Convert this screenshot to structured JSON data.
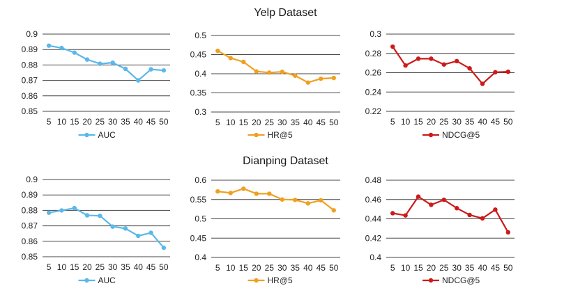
{
  "rows": [
    {
      "title": "Yelp Dataset"
    },
    {
      "title": "Dianping Dataset"
    }
  ],
  "chart_data": [
    {
      "type": "line",
      "x": [
        "5",
        "10",
        "15",
        "20",
        "25",
        "30",
        "35",
        "40",
        "45",
        "50"
      ],
      "ylim": [
        0.85,
        0.9
      ],
      "yticks": [
        "0.85",
        "0.86",
        "0.87",
        "0.88",
        "0.89",
        "0.9"
      ],
      "series": [
        {
          "name": "AUC",
          "color": "#5bb8ea",
          "values": [
            0.8925,
            0.891,
            0.888,
            0.8835,
            0.8808,
            0.8815,
            0.8775,
            0.87,
            0.8772,
            0.8765
          ]
        }
      ],
      "grid": true,
      "legend": "bottom"
    },
    {
      "type": "line",
      "x": [
        "5",
        "10",
        "15",
        "20",
        "25",
        "30",
        "35",
        "40",
        "45",
        "50"
      ],
      "ylim": [
        0.3,
        0.5
      ],
      "yticks": [
        "0.3",
        "0.35",
        "0.4",
        "0.45",
        "0.5"
      ],
      "series": [
        {
          "name": "HR@5",
          "color": "#f0a020",
          "values": [
            0.46,
            0.441,
            0.431,
            0.406,
            0.403,
            0.405,
            0.395,
            0.377,
            0.387,
            0.389
          ]
        }
      ],
      "grid": true,
      "legend": "bottom"
    },
    {
      "type": "line",
      "x": [
        "5",
        "10",
        "15",
        "20",
        "25",
        "30",
        "35",
        "40",
        "45",
        "50"
      ],
      "ylim": [
        0.22,
        0.3
      ],
      "yticks": [
        "0.22",
        "0.24",
        "0.26",
        "0.28",
        "0.3"
      ],
      "series": [
        {
          "name": "NDCG@5",
          "color": "#cc1a1a",
          "values": [
            0.287,
            0.2675,
            0.2745,
            0.2745,
            0.2685,
            0.272,
            0.2645,
            0.2485,
            0.2605,
            0.261
          ]
        }
      ],
      "grid": true,
      "legend": "bottom"
    },
    {
      "type": "line",
      "x": [
        "5",
        "10",
        "15",
        "20",
        "25",
        "30",
        "35",
        "40",
        "45",
        "50"
      ],
      "ylim": [
        0.85,
        0.9
      ],
      "yticks": [
        "0.85",
        "0.86",
        "0.87",
        "0.88",
        "0.89",
        "0.9"
      ],
      "series": [
        {
          "name": "AUC",
          "color": "#5bb8ea",
          "values": [
            0.8785,
            0.88,
            0.8815,
            0.8768,
            0.8765,
            0.8695,
            0.8683,
            0.8635,
            0.8655,
            0.8558
          ]
        }
      ],
      "grid": true,
      "legend": "bottom"
    },
    {
      "type": "line",
      "x": [
        "5",
        "10",
        "15",
        "20",
        "25",
        "30",
        "35",
        "40",
        "45",
        "50"
      ],
      "ylim": [
        0.4,
        0.6
      ],
      "yticks": [
        "0.4",
        "0.45",
        "0.5",
        "0.55",
        "0.6"
      ],
      "series": [
        {
          "name": "HR@5",
          "color": "#f0a020",
          "values": [
            0.571,
            0.567,
            0.578,
            0.565,
            0.565,
            0.55,
            0.549,
            0.54,
            0.548,
            0.522
          ]
        }
      ],
      "grid": true,
      "legend": "bottom"
    },
    {
      "type": "line",
      "x": [
        "5",
        "10",
        "15",
        "20",
        "25",
        "30",
        "35",
        "40",
        "45",
        "50"
      ],
      "ylim": [
        0.4,
        0.48
      ],
      "yticks": [
        "0.4",
        "0.42",
        "0.44",
        "0.46",
        "0.48"
      ],
      "series": [
        {
          "name": "NDCG@5",
          "color": "#cc1a1a",
          "values": [
            0.4458,
            0.4435,
            0.463,
            0.4545,
            0.4597,
            0.451,
            0.444,
            0.4405,
            0.4495,
            0.426
          ]
        }
      ],
      "grid": true,
      "legend": "bottom"
    }
  ]
}
